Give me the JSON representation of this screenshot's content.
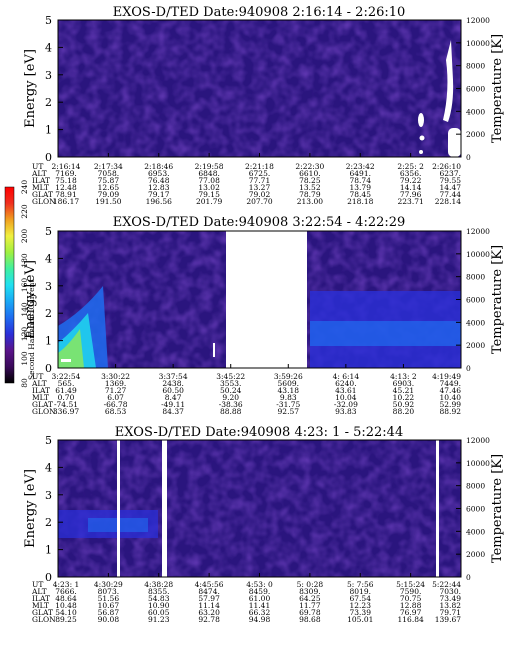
{
  "colors": {
    "background_field": "#2a157e",
    "colorbar": [
      "#000000",
      "#3a0a5a",
      "#5a148a",
      "#2b2fd8",
      "#1f6cf0",
      "#1aa8f5",
      "#20e0f0",
      "#40f0a0",
      "#a0f040",
      "#f0f040",
      "#f0a020",
      "#f03020",
      "#ff0000"
    ]
  },
  "colorbar": {
    "label": "Second Harmonic Current",
    "ticks": [
      "240",
      "220",
      "200",
      "180",
      "160",
      "140",
      "120",
      "100",
      "80"
    ]
  },
  "eph_labels": [
    "UT",
    "ALT",
    "ILAT",
    "MLT",
    "GLAT",
    "GLON"
  ],
  "chart_data": [
    {
      "type": "heatmap",
      "title": "EXOS-D/TED  Date:940908  2:16:14 - 2:26:10",
      "ylabel": "Energy [eV]",
      "y2label": "Temperature [K]",
      "ylim": [
        0,
        5
      ],
      "y2lim": [
        0,
        12000
      ],
      "y_ticks": [
        "0",
        "1",
        "2",
        "3",
        "4",
        "5"
      ],
      "y2_ticks": [
        "0",
        "2000",
        "4000",
        "6000",
        "8000",
        "10000",
        "12000"
      ],
      "x_columns": [
        {
          "UT": "2:16:14",
          "ALT": "7169.",
          "ILAT": "75.18",
          "MLT": "12.48",
          "GLAT": "78.91",
          "GLON": "186.17"
        },
        {
          "UT": "2:17:34",
          "ALT": "7058.",
          "ILAT": "75.87",
          "MLT": "12.65",
          "GLAT": "79.09",
          "GLON": "191.50"
        },
        {
          "UT": "2:18:46",
          "ALT": "6953.",
          "ILAT": "76.48",
          "MLT": "12.83",
          "GLAT": "79.17",
          "GLON": "196.56"
        },
        {
          "UT": "2:19:58",
          "ALT": "6848.",
          "ILAT": "77.08",
          "MLT": "13.02",
          "GLAT": "79.15",
          "GLON": "201.79"
        },
        {
          "UT": "2:21:18",
          "ALT": "6725.",
          "ILAT": "77.71",
          "MLT": "13.27",
          "GLAT": "79.02",
          "GLON": "207.70"
        },
        {
          "UT": "2:22:30",
          "ALT": "6610.",
          "ILAT": "78.25",
          "MLT": "13.52",
          "GLAT": "78.79",
          "GLON": "213.00"
        },
        {
          "UT": "2:23:42",
          "ALT": "6491.",
          "ILAT": "78.74",
          "MLT": "13.79",
          "GLAT": "78.45",
          "GLON": "218.18"
        },
        {
          "UT": "2:25: 2",
          "ALT": "6356.",
          "ILAT": "79.22",
          "MLT": "14.14",
          "GLAT": "77.96",
          "GLON": "223.71"
        },
        {
          "UT": "2:26:10",
          "ALT": "6237.",
          "ILAT": "79.55",
          "MLT": "14.47",
          "GLAT": "77.44",
          "GLON": "228.14"
        }
      ]
    },
    {
      "type": "heatmap",
      "title": "EXOS-D/TED  Date:940908  3:22:54 - 4:22:29",
      "ylabel": "Energy [eV]",
      "y2label": "Temperature [K]",
      "ylim": [
        0,
        5
      ],
      "y2lim": [
        0,
        12000
      ],
      "y_ticks": [
        "0",
        "1",
        "2",
        "3",
        "4",
        "5"
      ],
      "y2_ticks": [
        "0",
        "2000",
        "4000",
        "6000",
        "8000",
        "10000",
        "12000"
      ],
      "x_columns": [
        {
          "UT": "3:22:54",
          "ALT": "565.",
          "ILAT": "61.49",
          "MLT": "0.70",
          "GLAT": "-74.51",
          "GLON": "336.97"
        },
        {
          "UT": "3:30:22",
          "ALT": "1369.",
          "ILAT": "71.27",
          "MLT": "6.07",
          "GLAT": "-66.78",
          "GLON": "68.53"
        },
        {
          "UT": "3:37:54",
          "ALT": "2438.",
          "ILAT": "60.50",
          "MLT": "8.47",
          "GLAT": "-49.11",
          "GLON": "84.37"
        },
        {
          "UT": "3:45:22",
          "ALT": "3553.",
          "ILAT": "50.24",
          "MLT": "9.20",
          "GLAT": "-38.36",
          "GLON": "88.88"
        },
        {
          "UT": "3:59:26",
          "ALT": "5609.",
          "ILAT": "43.18",
          "MLT": "9.83",
          "GLAT": "-31.75",
          "GLON": "92.57"
        },
        {
          "UT": "4: 6:14",
          "ALT": "6240.",
          "ILAT": "43.61",
          "MLT": "10.04",
          "GLAT": "-32.09",
          "GLON": "93.83"
        },
        {
          "UT": "4:13: 2",
          "ALT": "6903.",
          "ILAT": "45.21",
          "MLT": "10.22",
          "GLAT": "50.92",
          "GLON": "88.20"
        },
        {
          "UT": "4:19:49",
          "ALT": "7449.",
          "ILAT": "47.46",
          "MLT": "10.40",
          "GLAT": "52.99",
          "GLON": "88.92"
        }
      ]
    },
    {
      "type": "heatmap",
      "title": "EXOS-D/TED  Date:940908  4:23: 1 - 5:22:44",
      "ylabel": "Energy [eV]",
      "y2label": "Temperature [K]",
      "ylim": [
        0,
        5
      ],
      "y2lim": [
        0,
        12000
      ],
      "y_ticks": [
        "0",
        "1",
        "2",
        "3",
        "4",
        "5"
      ],
      "y2_ticks": [
        "0",
        "2000",
        "4000",
        "6000",
        "8000",
        "10000",
        "12000"
      ],
      "x_columns": [
        {
          "UT": "4:23: 1",
          "ALT": "7666.",
          "ILAT": "48.64",
          "MLT": "10.48",
          "GLAT": "54.10",
          "GLON": "89.25"
        },
        {
          "UT": "4:30:29",
          "ALT": "8073.",
          "ILAT": "51.56",
          "MLT": "10.67",
          "GLAT": "56.87",
          "GLON": "90.08"
        },
        {
          "UT": "4:38:28",
          "ALT": "8355.",
          "ILAT": "54.83",
          "MLT": "10.90",
          "GLAT": "60.05",
          "GLON": "91.23"
        },
        {
          "UT": "4:45:56",
          "ALT": "8474.",
          "ILAT": "57.97",
          "MLT": "11.14",
          "GLAT": "63.20",
          "GLON": "92.78"
        },
        {
          "UT": "4:53: 0",
          "ALT": "8459.",
          "ILAT": "61.00",
          "MLT": "11.41",
          "GLAT": "66.32",
          "GLON": "94.98"
        },
        {
          "UT": "5: 0:28",
          "ALT": "8309.",
          "ILAT": "64.25",
          "MLT": "11.77",
          "GLAT": "69.78",
          "GLON": "98.68"
        },
        {
          "UT": "5: 7:56",
          "ALT": "8019.",
          "ILAT": "67.54",
          "MLT": "12.23",
          "GLAT": "73.39",
          "GLON": "105.01"
        },
        {
          "UT": "5:15:24",
          "ALT": "7590.",
          "ILAT": "70.75",
          "MLT": "12.88",
          "GLAT": "76.97",
          "GLON": "116.84"
        },
        {
          "UT": "5:22:44",
          "ALT": "7030.",
          "ILAT": "73.49",
          "MLT": "13.82",
          "GLAT": "79.71",
          "GLON": "139.67"
        }
      ]
    }
  ]
}
